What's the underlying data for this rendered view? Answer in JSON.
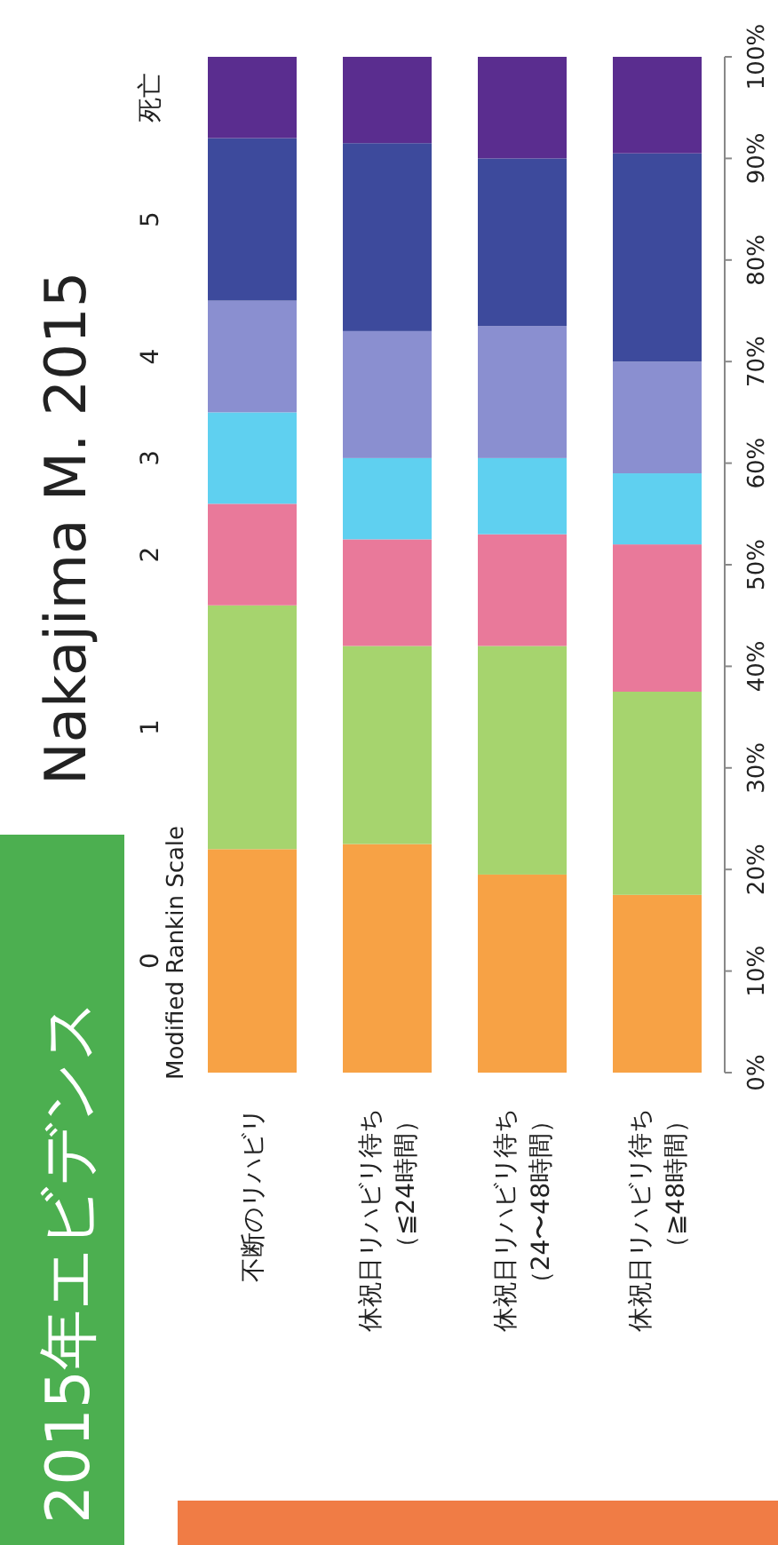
{
  "chart_data": {
    "type": "bar",
    "stacked": true,
    "title": "2015年エビデンス",
    "subtitle": "Nakajima M. 2015",
    "legend_title": "Modified Rankin Scale",
    "legend": "top",
    "categories": [
      "不断のリハビリ",
      "休祝日リハビリ待ち（≦24時間）",
      "休祝日リハビリ待ち（24〜48時間）",
      "休祝日リハビリ待ち（≧48時間）"
    ],
    "series": [
      {
        "name": "0",
        "color": "#f7a245",
        "values": [
          22,
          22.5,
          19.5,
          17.5
        ]
      },
      {
        "name": "1",
        "color": "#a6d46e",
        "values": [
          24,
          19.5,
          22.5,
          20
        ]
      },
      {
        "name": "2",
        "color": "#e9799a",
        "values": [
          10,
          10.5,
          11,
          14.5
        ]
      },
      {
        "name": "3",
        "color": "#5fd0f0",
        "values": [
          9,
          8,
          7.5,
          7
        ]
      },
      {
        "name": "4",
        "color": "#8a8fd0",
        "values": [
          11,
          12.5,
          13,
          11
        ]
      },
      {
        "name": "5",
        "color": "#3d4a9c",
        "values": [
          16,
          18.5,
          16.5,
          20.5
        ]
      },
      {
        "name": "死亡",
        "color": "#5a2d8f",
        "values": [
          8,
          8.5,
          10,
          9.5
        ]
      }
    ],
    "ylim": [
      0,
      100
    ],
    "yticks": [
      {
        "value": 0,
        "label": "0%"
      },
      {
        "value": 10,
        "label": "10%"
      },
      {
        "value": 20,
        "label": "20%"
      },
      {
        "value": 30,
        "label": "30%"
      },
      {
        "value": 40,
        "label": "40%"
      },
      {
        "value": 50,
        "label": "50%"
      },
      {
        "value": 60,
        "label": "60%"
      },
      {
        "value": 70,
        "label": "70%"
      },
      {
        "value": 80,
        "label": "80%"
      },
      {
        "value": 90,
        "label": "90%"
      },
      {
        "value": 100,
        "label": "100%"
      }
    ]
  }
}
